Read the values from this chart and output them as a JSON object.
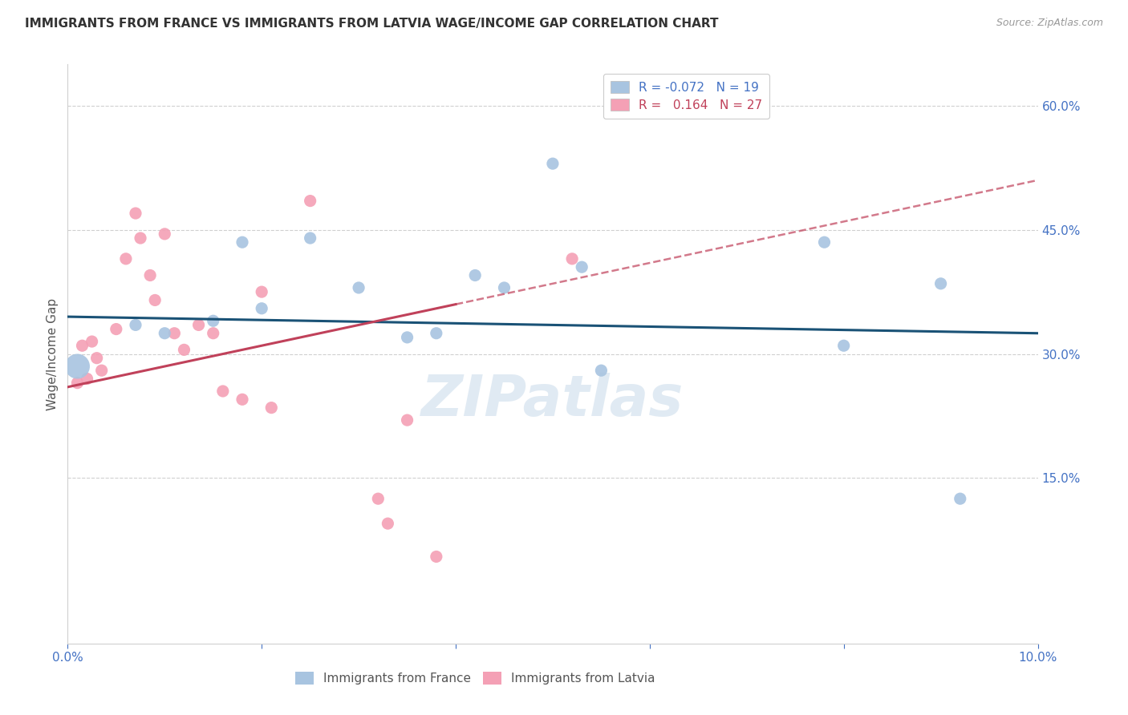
{
  "title": "IMMIGRANTS FROM FRANCE VS IMMIGRANTS FROM LATVIA WAGE/INCOME GAP CORRELATION CHART",
  "source": "Source: ZipAtlas.com",
  "ylabel": "Wage/Income Gap",
  "xlim": [
    0.0,
    10.0
  ],
  "ylim": [
    -5.0,
    65.0
  ],
  "yticks": [
    15.0,
    30.0,
    45.0,
    60.0
  ],
  "xticks": [
    0.0,
    2.0,
    4.0,
    6.0,
    8.0,
    10.0
  ],
  "france_R": -0.072,
  "france_N": 19,
  "latvia_R": 0.164,
  "latvia_N": 27,
  "france_color": "#a8c4e0",
  "france_line_color": "#1a5276",
  "latvia_color": "#f4a0b5",
  "latvia_line_color": "#c0415a",
  "watermark": "ZIPatlas",
  "france_points": [
    [
      0.1,
      28.5,
      500
    ],
    [
      0.7,
      33.5,
      120
    ],
    [
      1.0,
      32.5,
      120
    ],
    [
      1.5,
      34.0,
      120
    ],
    [
      1.8,
      43.5,
      120
    ],
    [
      2.0,
      35.5,
      120
    ],
    [
      2.5,
      44.0,
      120
    ],
    [
      3.0,
      38.0,
      120
    ],
    [
      3.5,
      32.0,
      120
    ],
    [
      3.8,
      32.5,
      120
    ],
    [
      4.2,
      39.5,
      120
    ],
    [
      4.5,
      38.0,
      120
    ],
    [
      5.0,
      53.0,
      120
    ],
    [
      5.3,
      40.5,
      120
    ],
    [
      5.5,
      28.0,
      120
    ],
    [
      7.8,
      43.5,
      120
    ],
    [
      8.0,
      31.0,
      120
    ],
    [
      9.0,
      38.5,
      120
    ],
    [
      9.2,
      12.5,
      120
    ]
  ],
  "latvia_points": [
    [
      0.1,
      26.5,
      120
    ],
    [
      0.15,
      31.0,
      120
    ],
    [
      0.2,
      27.0,
      120
    ],
    [
      0.25,
      31.5,
      120
    ],
    [
      0.3,
      29.5,
      120
    ],
    [
      0.35,
      28.0,
      120
    ],
    [
      0.5,
      33.0,
      120
    ],
    [
      0.6,
      41.5,
      120
    ],
    [
      0.7,
      47.0,
      120
    ],
    [
      0.75,
      44.0,
      120
    ],
    [
      0.85,
      39.5,
      120
    ],
    [
      0.9,
      36.5,
      120
    ],
    [
      1.0,
      44.5,
      120
    ],
    [
      1.1,
      32.5,
      120
    ],
    [
      1.2,
      30.5,
      120
    ],
    [
      1.35,
      33.5,
      120
    ],
    [
      1.5,
      32.5,
      120
    ],
    [
      1.6,
      25.5,
      120
    ],
    [
      1.8,
      24.5,
      120
    ],
    [
      2.0,
      37.5,
      120
    ],
    [
      2.1,
      23.5,
      120
    ],
    [
      2.5,
      48.5,
      120
    ],
    [
      3.2,
      12.5,
      120
    ],
    [
      3.3,
      9.5,
      120
    ],
    [
      3.5,
      22.0,
      120
    ],
    [
      3.8,
      5.5,
      120
    ],
    [
      5.2,
      41.5,
      120
    ]
  ]
}
